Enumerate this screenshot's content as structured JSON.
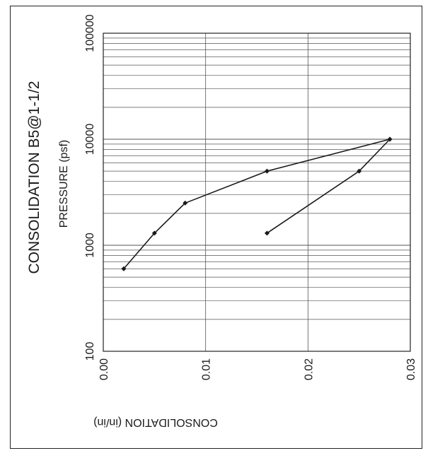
{
  "chart_data": {
    "type": "line",
    "title": "CONSOLIDATION B5@1-1/2",
    "xlabel": "PRESSURE (psf)",
    "ylabel": "CONSOLIDATION (in/in)",
    "x_scale": "log",
    "xlim": [
      100,
      100000
    ],
    "ylim": [
      0.0,
      0.03
    ],
    "x_tick_labels": [
      "100",
      "1000",
      "10000",
      "100000"
    ],
    "y_tick_labels": [
      "0.00",
      "0.01",
      "0.02",
      "0.03"
    ],
    "grid": true,
    "orientation": "rotated 90 degrees counter-clockwise",
    "series": [
      {
        "points": [
          {
            "x": 600,
            "y": 0.002
          },
          {
            "x": 1300,
            "y": 0.005
          },
          {
            "x": 2500,
            "y": 0.008
          },
          {
            "x": 5000,
            "y": 0.016
          },
          {
            "x": 10000,
            "y": 0.028
          }
        ]
      },
      {
        "points": [
          {
            "x": 10000,
            "y": 0.028
          },
          {
            "x": 5000,
            "y": 0.025
          },
          {
            "x": 1300,
            "y": 0.016
          }
        ]
      }
    ],
    "line_color": "#1a1a1a"
  }
}
